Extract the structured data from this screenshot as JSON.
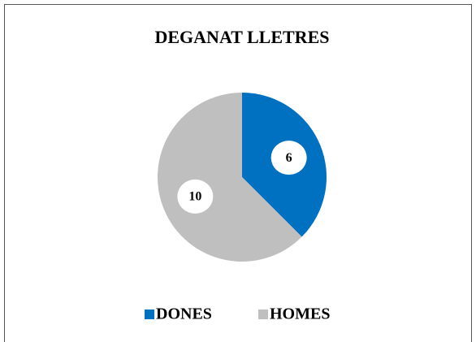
{
  "chart_data": {
    "type": "pie",
    "title": "DEGANAT LLETRES",
    "categories": [
      "DONES",
      "HOMES"
    ],
    "values": [
      6,
      10
    ],
    "colors": [
      "#0070c0",
      "#bfbfbf"
    ],
    "legend": "bottom"
  }
}
